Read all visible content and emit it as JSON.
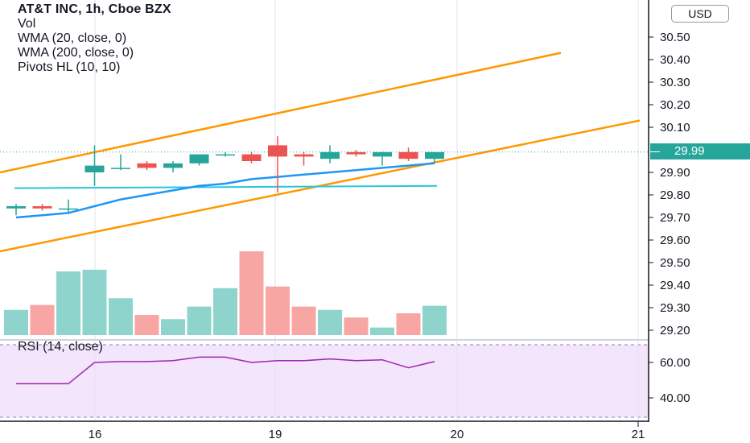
{
  "legend": {
    "title": "AT&T INC, 1h, Cboe BZX",
    "vol": "Vol",
    "wma20": "WMA (20, close, 0)",
    "wma200": "WMA (200, close, 0)",
    "pivots": "Pivots HL (10, 10)"
  },
  "currency_button": "USD",
  "last_price_badge": "29.99",
  "rsi_label": "RSI (14, close)",
  "colors": {
    "up": "#26a69a",
    "down": "#ef5350",
    "vol_up": "#8fd4cc",
    "vol_down": "#f7a6a3",
    "wma20": "#2196f3",
    "wma200": "#26c6da",
    "trend": "#ff9800",
    "rsi_line": "#9c27b0",
    "rsi_band": "#f3e5fb"
  },
  "chart_data": {
    "type": "candlestick",
    "price_axis_ticks": [
      "30.50",
      "30.40",
      "30.30",
      "30.20",
      "30.10",
      "29.90",
      "29.80",
      "29.70",
      "29.60",
      "29.50",
      "29.40",
      "29.30",
      "29.20"
    ],
    "rsi_axis_ticks": [
      "60.00",
      "40.00"
    ],
    "time_axis_ticks": [
      "16",
      "19",
      "20",
      "21"
    ],
    "candles": [
      {
        "o": 29.74,
        "h": 29.76,
        "l": 29.71,
        "c": 29.75
      },
      {
        "o": 29.75,
        "h": 29.76,
        "l": 29.73,
        "c": 29.74
      },
      {
        "o": 29.74,
        "h": 29.78,
        "l": 29.72,
        "c": 29.74
      },
      {
        "o": 29.9,
        "h": 30.02,
        "l": 29.84,
        "c": 29.93
      },
      {
        "o": 29.92,
        "h": 29.98,
        "l": 29.91,
        "c": 29.92
      },
      {
        "o": 29.94,
        "h": 29.95,
        "l": 29.91,
        "c": 29.92
      },
      {
        "o": 29.92,
        "h": 29.95,
        "l": 29.9,
        "c": 29.94
      },
      {
        "o": 29.94,
        "h": 29.98,
        "l": 29.93,
        "c": 29.98
      },
      {
        "o": 29.98,
        "h": 29.99,
        "l": 29.97,
        "c": 29.98
      },
      {
        "o": 29.98,
        "h": 29.99,
        "l": 29.94,
        "c": 29.95
      },
      {
        "o": 30.02,
        "h": 30.06,
        "l": 29.81,
        "c": 29.97
      },
      {
        "o": 29.98,
        "h": 29.99,
        "l": 29.93,
        "c": 29.97
      },
      {
        "o": 29.96,
        "h": 30.02,
        "l": 29.94,
        "c": 29.99
      },
      {
        "o": 29.99,
        "h": 30.0,
        "l": 29.97,
        "c": 29.98
      },
      {
        "o": 29.97,
        "h": 29.99,
        "l": 29.93,
        "c": 29.99
      },
      {
        "o": 29.99,
        "h": 30.01,
        "l": 29.95,
        "c": 29.96
      },
      {
        "o": 29.96,
        "h": 29.99,
        "l": 29.94,
        "c": 29.99
      }
    ],
    "volume_relative": [
      0.3,
      0.36,
      0.76,
      0.78,
      0.44,
      0.24,
      0.19,
      0.34,
      0.56,
      1.0,
      0.58,
      0.34,
      0.3,
      0.21,
      0.09,
      0.26,
      0.35
    ],
    "rsi_values": [
      48,
      48,
      48,
      60,
      60.5,
      60.5,
      61,
      63,
      63,
      60,
      61,
      61,
      62,
      61,
      61.5,
      57,
      60.5
    ],
    "wma20": [
      29.7,
      29.71,
      29.72,
      29.75,
      29.78,
      29.8,
      29.82,
      29.84,
      29.85,
      29.87,
      29.88,
      29.89,
      29.9,
      29.91,
      29.92,
      29.93,
      29.94
    ],
    "wma200": [
      29.83,
      29.84
    ],
    "trend_upper": [
      29.9,
      30.43
    ],
    "trend_lower": [
      29.55,
      30.13
    ]
  }
}
